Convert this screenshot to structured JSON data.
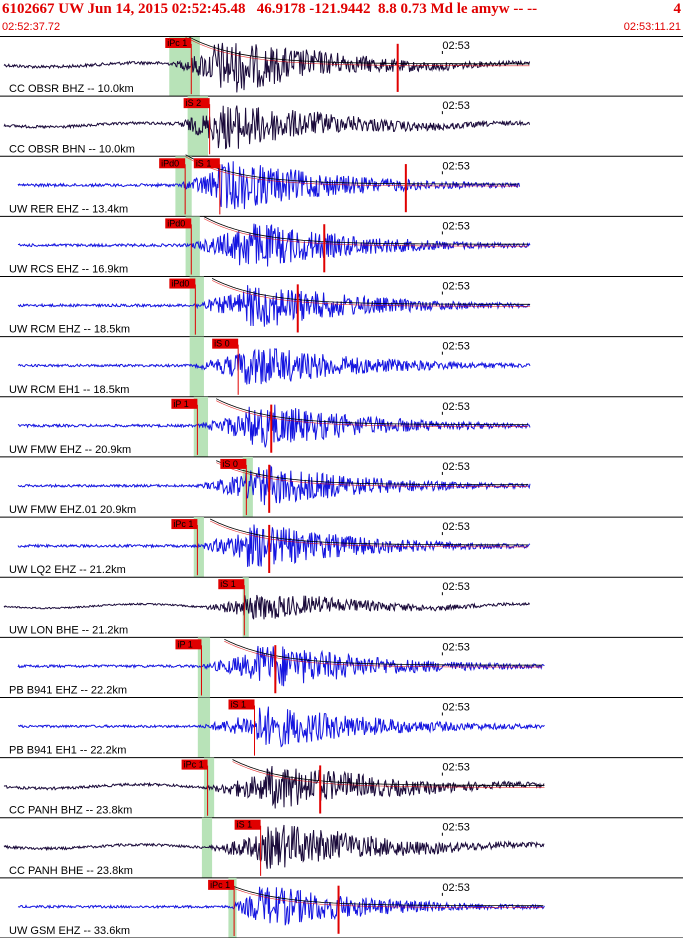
{
  "header": {
    "event_title": "6102667 UW Jun 14, 2015 02:52:45.48   46.9178 -121.9442  8.8 0.73 Md le amyw -- --",
    "event_tail": "4",
    "time_start": "02:52:37.72",
    "time_end": "02:53:11.21"
  },
  "colors": {
    "pick": "#e00000",
    "pick_window": "#b8e3b8",
    "trace_bh": "#1a0a3a",
    "trace_eh": "#1515e0",
    "grid": "#000000"
  },
  "minute_mark": "02:53",
  "traces": [
    {
      "label": "CC OBSR BHZ -- 10.0km",
      "type": "BH",
      "picks": [
        {
          "text": "iPc 1",
          "t": 8.3
        }
      ],
      "green": [
        8.3,
        9.8
      ],
      "onset": 8.5,
      "peak": 10.5,
      "coda_end": 26,
      "amp": 0.9,
      "decay": true,
      "marker_t": 19.5
    },
    {
      "label": "CC OBSR BHN -- 10.0km",
      "type": "BH",
      "picks": [
        {
          "text": "iS 2",
          "t": 9.2
        }
      ],
      "green": [
        9.2,
        10.2
      ],
      "onset": 8.5,
      "peak": 10.5,
      "coda_end": 26,
      "amp": 0.8,
      "decay": false
    },
    {
      "label": "UW RER EHZ -- 13.4km",
      "type": "EH",
      "picks": [
        {
          "text": "iPd0",
          "t": 8.0
        },
        {
          "text": "iS 1",
          "t": 9.7
        }
      ],
      "green": [
        8.6,
        9.4
      ],
      "onset": 8.8,
      "peak": 10.7,
      "coda_end": 25.5,
      "amp": 0.85,
      "decay": true,
      "marker_t": 19.9
    },
    {
      "label": "UW RCS EHZ -- 16.9km",
      "type": "EH",
      "picks": [
        {
          "text": "iPd0",
          "t": 8.3
        }
      ],
      "green": [
        9.1,
        9.8
      ],
      "onset": 9.2,
      "peak": 11.6,
      "coda_end": 26,
      "amp": 0.8,
      "decay": true,
      "marker_t": 15.9
    },
    {
      "label": "UW RCM EHZ -- 18.5km",
      "type": "EH",
      "picks": [
        {
          "text": "iPd0",
          "t": 8.5
        }
      ],
      "green": [
        9.3,
        10.0
      ],
      "onset": 9.4,
      "peak": 12.0,
      "coda_end": 26,
      "amp": 0.75,
      "decay": true,
      "marker_t": 14.6
    },
    {
      "label": "UW RCM EH1 -- 18.5km",
      "type": "EH",
      "picks": [
        {
          "text": "iS 0",
          "t": 10.6
        }
      ],
      "green": [
        9.3,
        10.0
      ],
      "onset": 9.5,
      "peak": 11.8,
      "coda_end": 26,
      "amp": 0.7,
      "decay": false
    },
    {
      "label": "UW FMW EHZ -- 20.9km",
      "type": "EH",
      "picks": [
        {
          "text": "iP 1",
          "t": 8.6
        }
      ],
      "green": [
        9.5,
        10.2
      ],
      "onset": 9.7,
      "peak": 12.2,
      "coda_end": 26,
      "amp": 0.75,
      "decay": true,
      "marker_t": 13.3
    },
    {
      "label": "UW FMW EHZ.01 20.9km",
      "type": "EH",
      "picks": [
        {
          "text": "iS 0",
          "t": 11.0
        }
      ],
      "green": [
        11.9,
        12.4
      ],
      "onset": 9.7,
      "peak": 12.2,
      "coda_end": 26,
      "amp": 0.7,
      "decay": true,
      "marker_t": 13.2
    },
    {
      "label": "UW LQ2 EHZ -- 21.2km",
      "type": "EH",
      "picks": [
        {
          "text": "iPc 1",
          "t": 8.6
        }
      ],
      "green": [
        9.5,
        10.0
      ],
      "onset": 9.7,
      "peak": 11.9,
      "coda_end": 26,
      "amp": 0.75,
      "decay": true,
      "marker_t": 13.2
    },
    {
      "label": "UW LON BHE -- 21.2km",
      "type": "BH",
      "picks": [
        {
          "text": "iS 1",
          "t": 10.9
        }
      ],
      "green": [
        11.9,
        12.2
      ],
      "onset": 9.8,
      "peak": 12.0,
      "coda_end": 26,
      "amp": 0.45,
      "decay": false
    },
    {
      "label": "PB B941 EHZ -- 22.2km",
      "type": "EH",
      "picks": [
        {
          "text": "iP 1",
          "t": 8.8
        }
      ],
      "green": [
        9.7,
        10.3
      ],
      "onset": 9.9,
      "peak": 12.6,
      "coda_end": 26.7,
      "amp": 0.75,
      "decay": true,
      "marker_t": 13.5
    },
    {
      "label": "PB B941 EH1 -- 22.2km",
      "type": "EH",
      "picks": [
        {
          "text": "iS 1",
          "t": 11.4
        }
      ],
      "green": [
        9.7,
        10.3
      ],
      "onset": 9.9,
      "peak": 12.6,
      "coda_end": 26.7,
      "amp": 0.7,
      "decay": false
    },
    {
      "label": "CC PANH BHZ -- 23.8km",
      "type": "BH",
      "picks": [
        {
          "text": "iPc 1",
          "t": 9.1
        }
      ],
      "green": [
        10.0,
        10.5
      ],
      "onset": 10.1,
      "peak": 13.0,
      "coda_end": 26.7,
      "amp": 0.75,
      "decay": true,
      "marker_t": 15.7
    },
    {
      "label": "CC PANH BHE -- 23.8km",
      "type": "BH",
      "picks": [
        {
          "text": "iS 1",
          "t": 11.7
        }
      ],
      "green": [
        9.9,
        10.4
      ],
      "onset": 10.1,
      "peak": 13.0,
      "coda_end": 26.7,
      "amp": 0.75,
      "decay": false
    },
    {
      "label": "UW GSM EHZ -- 33.6km",
      "type": "EH",
      "picks": [
        {
          "text": "iPc 1",
          "t": 10.4
        }
      ],
      "green": [
        11.2,
        11.6
      ],
      "onset": 11.3,
      "peak": 12.5,
      "coda_end": 26.7,
      "amp": 0.7,
      "decay": true,
      "marker_t": 16.6
    }
  ]
}
